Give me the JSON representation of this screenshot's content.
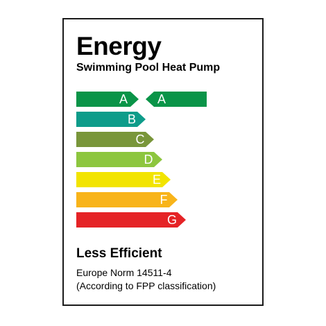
{
  "label": {
    "title": "Energy",
    "subtitle": "Swimming Pool Heat Pump",
    "footer_title": "Less Efficient",
    "norm": "Europe Norm 14511-4",
    "classification": "(According to FPP classification)"
  },
  "scale": [
    {
      "letter": "A",
      "color": "#0a9448"
    },
    {
      "letter": "B",
      "color": "#0e9c8a"
    },
    {
      "letter": "C",
      "color": "#79963a"
    },
    {
      "letter": "D",
      "color": "#8dc63f"
    },
    {
      "letter": "E",
      "color": "#f2e400"
    },
    {
      "letter": "F",
      "color": "#f8b41a"
    },
    {
      "letter": "G",
      "color": "#e52326"
    }
  ],
  "rating": {
    "letter": "A",
    "color": "#0a9448"
  }
}
